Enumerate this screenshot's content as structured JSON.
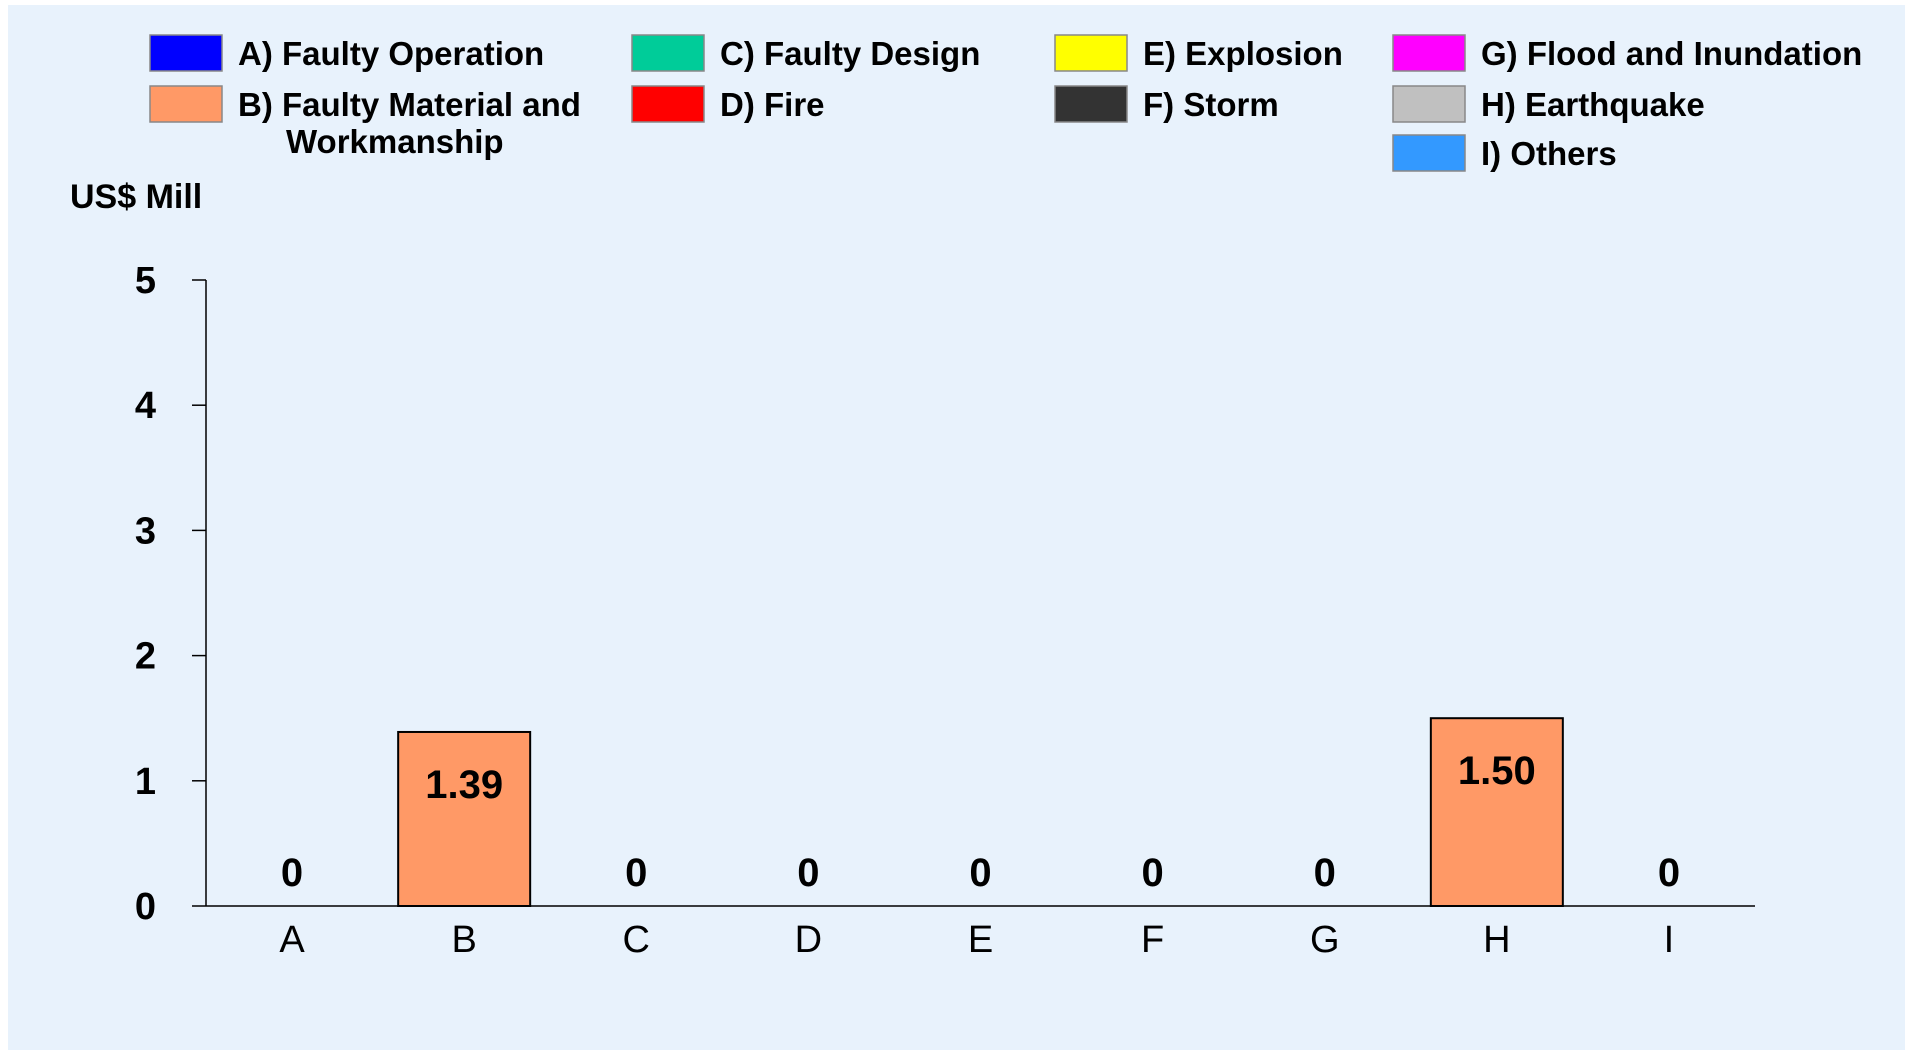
{
  "chart_data": {
    "type": "bar",
    "ylabel": "US$ Mill",
    "ylim": [
      0,
      5
    ],
    "yticks": [
      0,
      1,
      2,
      3,
      4,
      5
    ],
    "categories": [
      "A",
      "B",
      "C",
      "D",
      "E",
      "F",
      "G",
      "H",
      "I"
    ],
    "values": [
      0,
      1.39,
      0,
      0,
      0,
      0,
      0,
      1.5,
      0
    ],
    "data_labels": [
      "0",
      "1.39",
      "0",
      "0",
      "0",
      "0",
      "0",
      "1.50",
      "0"
    ],
    "bar_color": "#FF9966",
    "background_color": "#E8F2FC",
    "grid": false,
    "legend_position": "top",
    "legend": [
      {
        "lines": [
          "A) Faulty Operation"
        ],
        "color": "#0000FF"
      },
      {
        "lines": [
          "B) Faulty Material and",
          "Workmanship"
        ],
        "color": "#FF9966"
      },
      {
        "lines": [
          "C) Faulty Design"
        ],
        "color": "#00CC99"
      },
      {
        "lines": [
          "D) Fire"
        ],
        "color": "#FF0000"
      },
      {
        "lines": [
          "E) Explosion"
        ],
        "color": "#FFFF00"
      },
      {
        "lines": [
          "F) Storm"
        ],
        "color": "#333333"
      },
      {
        "lines": [
          "G) Flood and Inundation"
        ],
        "color": "#FF00FF"
      },
      {
        "lines": [
          "H) Earthquake"
        ],
        "color": "#C0C0C0"
      },
      {
        "lines": [
          "I) Others"
        ],
        "color": "#3399FF"
      }
    ]
  }
}
